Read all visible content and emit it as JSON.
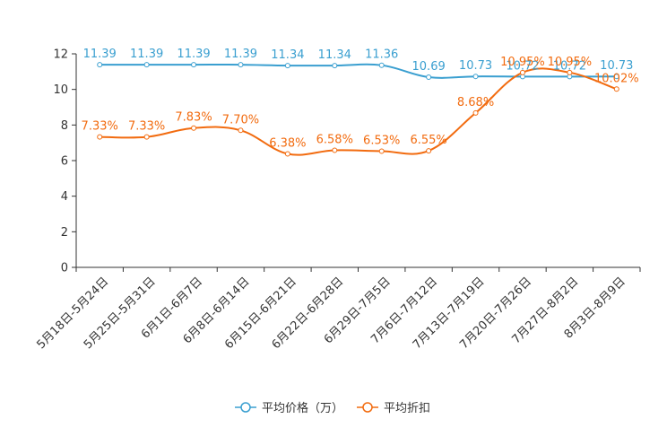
{
  "chart_data": {
    "type": "line",
    "title": "",
    "xlabel": "",
    "ylabel": "",
    "ylim": [
      0,
      12
    ],
    "yticks": [
      "0",
      "2",
      "4",
      "6",
      "8",
      "10",
      "12"
    ],
    "categories": [
      "5月18日-5月24日",
      "5月25日-5月31日",
      "6月1日-6月7日",
      "6月8日-6月14日",
      "6月15日-6月21日",
      "6月22日-6月28日",
      "6月29日-7月5日",
      "7月6日-7月12日",
      "7月13日-7月19日",
      "7月20日-7月26日",
      "7月27日-8月2日",
      "8月3日-8月9日"
    ],
    "series": [
      {
        "name": "平均价格（万）",
        "color": "#3a9fd0",
        "values": [
          11.39,
          11.39,
          11.39,
          11.39,
          11.34,
          11.34,
          11.36,
          10.69,
          10.73,
          10.72,
          10.72,
          10.73
        ],
        "labels": [
          "11.39",
          "11.39",
          "11.39",
          "11.39",
          "11.34",
          "11.34",
          "11.36",
          "10.69",
          "10.73",
          "10.72",
          "10.72",
          "10.73"
        ]
      },
      {
        "name": "平均折扣",
        "color": "#f26b0f",
        "values": [
          7.33,
          7.33,
          7.83,
          7.7,
          6.38,
          6.58,
          6.53,
          6.55,
          8.68,
          10.95,
          10.95,
          10.02
        ],
        "labels": [
          "7.33%",
          "7.33%",
          "7.83%",
          "7.70%",
          "6.38%",
          "6.58%",
          "6.53%",
          "6.55%",
          "8.68%",
          "10.95%",
          "10.95%",
          "10.02%"
        ]
      }
    ],
    "legend_position": "bottom",
    "grid": false
  }
}
